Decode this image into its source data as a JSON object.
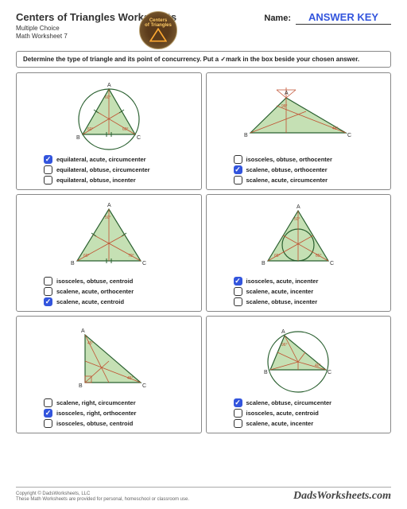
{
  "header": {
    "title": "Centers of Triangles Worksheets",
    "subtitle1": "Multiple Choice",
    "subtitle2": "Math Worksheet 7",
    "name_label": "Name:",
    "name_value": "ANSWER KEY",
    "badge_line1": "Centers",
    "badge_line2": "of Triangles"
  },
  "instruction": "Determine the type of triangle and its point of concurrency.  Put a ✓mark in the box beside your chosen answer.",
  "cards": [
    {
      "svg_type": "equilateral_circum",
      "options": [
        {
          "label": "equilateral, acute, circumcenter",
          "checked": true
        },
        {
          "label": "equilateral, obtuse, circumcenter",
          "checked": false
        },
        {
          "label": "equilateral, obtuse, incenter",
          "checked": false
        }
      ]
    },
    {
      "svg_type": "scalene_obtuse_ortho",
      "options": [
        {
          "label": "isosceles, obtuse, orthocenter",
          "checked": false
        },
        {
          "label": "scalene, obtuse, orthocenter",
          "checked": true
        },
        {
          "label": "scalene, acute, circumcenter",
          "checked": false
        }
      ]
    },
    {
      "svg_type": "scalene_acute_centroid",
      "options": [
        {
          "label": "isosceles, obtuse, centroid",
          "checked": false
        },
        {
          "label": "scalene, acute, orthocenter",
          "checked": false
        },
        {
          "label": "scalene, acute, centroid",
          "checked": true
        }
      ]
    },
    {
      "svg_type": "isosceles_acute_incenter",
      "options": [
        {
          "label": "isosceles, acute, incenter",
          "checked": true
        },
        {
          "label": "scalene, acute, incenter",
          "checked": false
        },
        {
          "label": "scalene, obtuse, incenter",
          "checked": false
        }
      ]
    },
    {
      "svg_type": "isosceles_right_ortho",
      "options": [
        {
          "label": "scalene, right, circumcenter",
          "checked": false
        },
        {
          "label": "isosceles, right, orthocenter",
          "checked": true
        },
        {
          "label": "isosceles, obtuse, centroid",
          "checked": false
        }
      ]
    },
    {
      "svg_type": "scalene_obtuse_circum",
      "options": [
        {
          "label": "scalene, obtuse, circumcenter",
          "checked": true
        },
        {
          "label": "isosceles, acute, centroid",
          "checked": false
        },
        {
          "label": "scalene, acute, incenter",
          "checked": false
        }
      ]
    }
  ],
  "footer": {
    "copyright1": "Copyright © DadsWorksheets, LLC",
    "copyright2": "These Math Worksheets are provided for personal, homeschool or classroom use.",
    "brand": "DadsWorksheets.com"
  },
  "colors": {
    "triangle_fill": "#c5e0b4",
    "triangle_stroke": "#2a6030",
    "cevian": "#c05030",
    "checked": "#3355dd",
    "answer": "#3355dd"
  }
}
